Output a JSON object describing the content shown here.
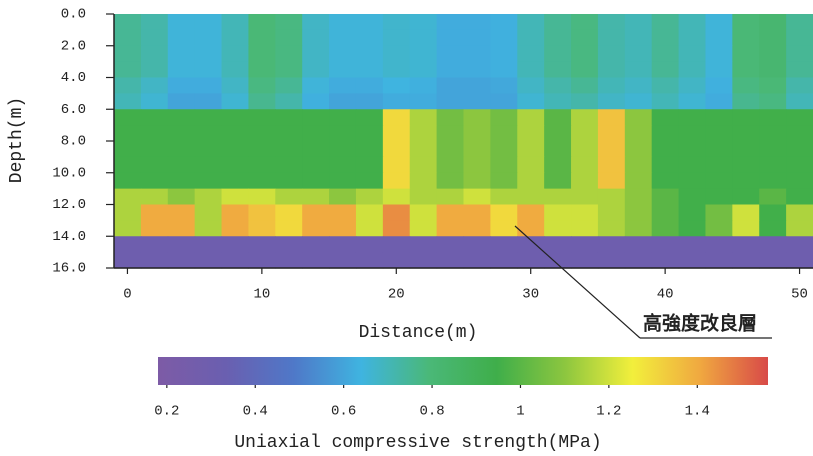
{
  "chart_data": {
    "type": "heatmap",
    "x_label": "Distance(m)",
    "y_label": "Depth(m)",
    "annotation": "高強度改良層",
    "x": [
      0,
      2,
      4,
      6,
      8,
      10,
      12,
      14,
      16,
      18,
      20,
      22,
      24,
      26,
      28,
      30,
      32,
      34,
      36,
      38,
      40,
      42,
      44,
      46,
      48,
      50
    ],
    "y": [
      0.5,
      1.5,
      2.5,
      3.5,
      4.5,
      5.5,
      6.5,
      7.5,
      8.5,
      9.5,
      10.5,
      11.5,
      12.5,
      13.5,
      14.5,
      15.5
    ],
    "xlim": [
      -1,
      51
    ],
    "ylim": [
      0,
      16
    ],
    "y_inverted": true,
    "xticks": [
      0,
      10,
      20,
      30,
      40,
      50
    ],
    "yticks": [
      {
        "value": 0,
        "label": "0.0"
      },
      {
        "value": 2,
        "label": "2.0"
      },
      {
        "value": 4,
        "label": "4.0"
      },
      {
        "value": 6,
        "label": "6.0"
      },
      {
        "value": 8,
        "label": "8.0"
      },
      {
        "value": 10,
        "label": "10.0"
      },
      {
        "value": 12,
        "label": "12.0"
      },
      {
        "value": 14,
        "label": "14.0"
      },
      {
        "value": 16,
        "label": "16.0"
      }
    ],
    "values": [
      [
        0.75,
        0.72,
        0.65,
        0.65,
        0.7,
        0.8,
        0.78,
        0.68,
        0.65,
        0.65,
        0.67,
        0.66,
        0.62,
        0.62,
        0.63,
        0.7,
        0.75,
        0.78,
        0.72,
        0.7,
        0.75,
        0.7,
        0.65,
        0.8,
        0.82,
        0.75
      ],
      [
        0.75,
        0.72,
        0.65,
        0.65,
        0.7,
        0.8,
        0.78,
        0.68,
        0.65,
        0.65,
        0.67,
        0.66,
        0.62,
        0.62,
        0.63,
        0.7,
        0.75,
        0.78,
        0.72,
        0.7,
        0.75,
        0.7,
        0.65,
        0.8,
        0.82,
        0.75
      ],
      [
        0.75,
        0.72,
        0.65,
        0.65,
        0.7,
        0.8,
        0.78,
        0.68,
        0.65,
        0.65,
        0.67,
        0.66,
        0.62,
        0.62,
        0.63,
        0.7,
        0.75,
        0.78,
        0.72,
        0.7,
        0.75,
        0.7,
        0.65,
        0.8,
        0.82,
        0.75
      ],
      [
        0.75,
        0.72,
        0.65,
        0.65,
        0.7,
        0.8,
        0.78,
        0.68,
        0.65,
        0.65,
        0.67,
        0.66,
        0.62,
        0.62,
        0.63,
        0.7,
        0.75,
        0.78,
        0.72,
        0.7,
        0.75,
        0.7,
        0.65,
        0.8,
        0.82,
        0.75
      ],
      [
        0.72,
        0.68,
        0.62,
        0.62,
        0.68,
        0.78,
        0.75,
        0.65,
        0.62,
        0.62,
        0.64,
        0.63,
        0.6,
        0.6,
        0.61,
        0.68,
        0.72,
        0.75,
        0.7,
        0.68,
        0.72,
        0.68,
        0.63,
        0.78,
        0.8,
        0.72
      ],
      [
        0.7,
        0.66,
        0.6,
        0.6,
        0.66,
        0.76,
        0.72,
        0.63,
        0.6,
        0.6,
        0.62,
        0.62,
        0.6,
        0.6,
        0.6,
        0.66,
        0.7,
        0.72,
        0.68,
        0.66,
        0.7,
        0.66,
        0.62,
        0.76,
        0.78,
        0.7
      ],
      [
        0.95,
        0.95,
        0.95,
        0.95,
        0.95,
        0.95,
        0.95,
        0.95,
        0.95,
        0.95,
        1.3,
        1.15,
        1.05,
        1.1,
        1.05,
        1.15,
        1.0,
        1.15,
        1.35,
        1.1,
        0.95,
        0.95,
        0.95,
        0.95,
        0.95,
        0.95
      ],
      [
        0.95,
        0.95,
        0.95,
        0.95,
        0.95,
        0.95,
        0.95,
        0.95,
        0.95,
        0.95,
        1.3,
        1.15,
        1.05,
        1.1,
        1.05,
        1.15,
        1.0,
        1.15,
        1.35,
        1.1,
        0.95,
        0.95,
        0.95,
        0.95,
        0.95,
        0.95
      ],
      [
        0.95,
        0.95,
        0.95,
        0.95,
        0.95,
        0.95,
        0.95,
        0.95,
        0.95,
        0.95,
        1.3,
        1.15,
        1.05,
        1.1,
        1.05,
        1.15,
        1.0,
        1.15,
        1.35,
        1.1,
        0.95,
        0.95,
        0.95,
        0.95,
        0.95,
        0.95
      ],
      [
        0.95,
        0.95,
        0.95,
        0.95,
        0.95,
        0.95,
        0.95,
        0.95,
        0.95,
        0.95,
        1.3,
        1.15,
        1.05,
        1.1,
        1.05,
        1.15,
        1.0,
        1.15,
        1.35,
        1.1,
        0.95,
        0.95,
        0.95,
        0.95,
        0.95,
        0.95
      ],
      [
        0.95,
        0.95,
        0.95,
        0.95,
        0.95,
        0.95,
        0.95,
        0.95,
        0.95,
        0.95,
        1.3,
        1.15,
        1.05,
        1.1,
        1.05,
        1.15,
        1.0,
        1.15,
        1.35,
        1.1,
        0.95,
        0.95,
        0.95,
        0.95,
        0.95,
        0.95
      ],
      [
        1.15,
        1.15,
        1.1,
        1.15,
        1.2,
        1.2,
        1.15,
        1.15,
        1.1,
        1.15,
        1.2,
        1.15,
        1.15,
        1.2,
        1.15,
        1.15,
        1.15,
        1.15,
        1.15,
        1.1,
        1.0,
        0.95,
        0.95,
        0.95,
        1.0,
        0.95
      ],
      [
        1.15,
        1.4,
        1.4,
        1.15,
        1.4,
        1.35,
        1.3,
        1.4,
        1.4,
        1.2,
        1.45,
        1.2,
        1.4,
        1.4,
        1.3,
        1.4,
        1.2,
        1.2,
        1.15,
        1.1,
        1.0,
        0.95,
        1.05,
        1.2,
        0.95,
        1.15
      ],
      [
        1.15,
        1.4,
        1.4,
        1.15,
        1.4,
        1.35,
        1.3,
        1.4,
        1.4,
        1.2,
        1.45,
        1.2,
        1.4,
        1.4,
        1.3,
        1.4,
        1.2,
        1.2,
        1.15,
        1.1,
        1.0,
        0.95,
        1.05,
        1.2,
        0.95,
        1.15
      ],
      [
        0.3,
        0.3,
        0.3,
        0.3,
        0.3,
        0.3,
        0.3,
        0.3,
        0.3,
        0.3,
        0.3,
        0.3,
        0.3,
        0.3,
        0.3,
        0.3,
        0.3,
        0.3,
        0.3,
        0.3,
        0.3,
        0.3,
        0.3,
        0.3,
        0.3,
        0.3
      ],
      [
        0.3,
        0.3,
        0.3,
        0.3,
        0.3,
        0.3,
        0.3,
        0.3,
        0.3,
        0.3,
        0.3,
        0.3,
        0.3,
        0.3,
        0.3,
        0.3,
        0.3,
        0.3,
        0.3,
        0.3,
        0.3,
        0.3,
        0.3,
        0.3,
        0.3,
        0.3
      ]
    ],
    "colorbar": {
      "label": "Uniaxial compressive strength(MPa)",
      "lim": [
        0.18,
        1.56
      ],
      "ticks": [
        0.2,
        0.4,
        0.6,
        0.8,
        1.0,
        1.2,
        1.4
      ],
      "colors": [
        "#7d5ba6",
        "#6a5fb0",
        "#4f78c8",
        "#3fb4e0",
        "#4ab878",
        "#3fae4a",
        "#8cc63f",
        "#f2ef3c",
        "#f0a840",
        "#d84a48"
      ]
    }
  }
}
